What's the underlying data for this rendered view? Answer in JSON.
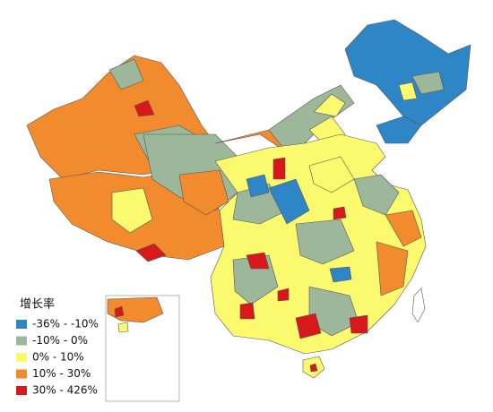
{
  "legend": {
    "title": "增长率",
    "items": [
      {
        "label": "-36% - -10%",
        "color": "#2f86c6"
      },
      {
        "label": "-10% - 0%",
        "color": "#9db79a"
      },
      {
        "label": "0% - 10%",
        "color": "#fbfa6e"
      },
      {
        "label": "10% - 30%",
        "color": "#f28a2e"
      },
      {
        "label": "30% - 426%",
        "color": "#d7191c"
      }
    ]
  }
}
